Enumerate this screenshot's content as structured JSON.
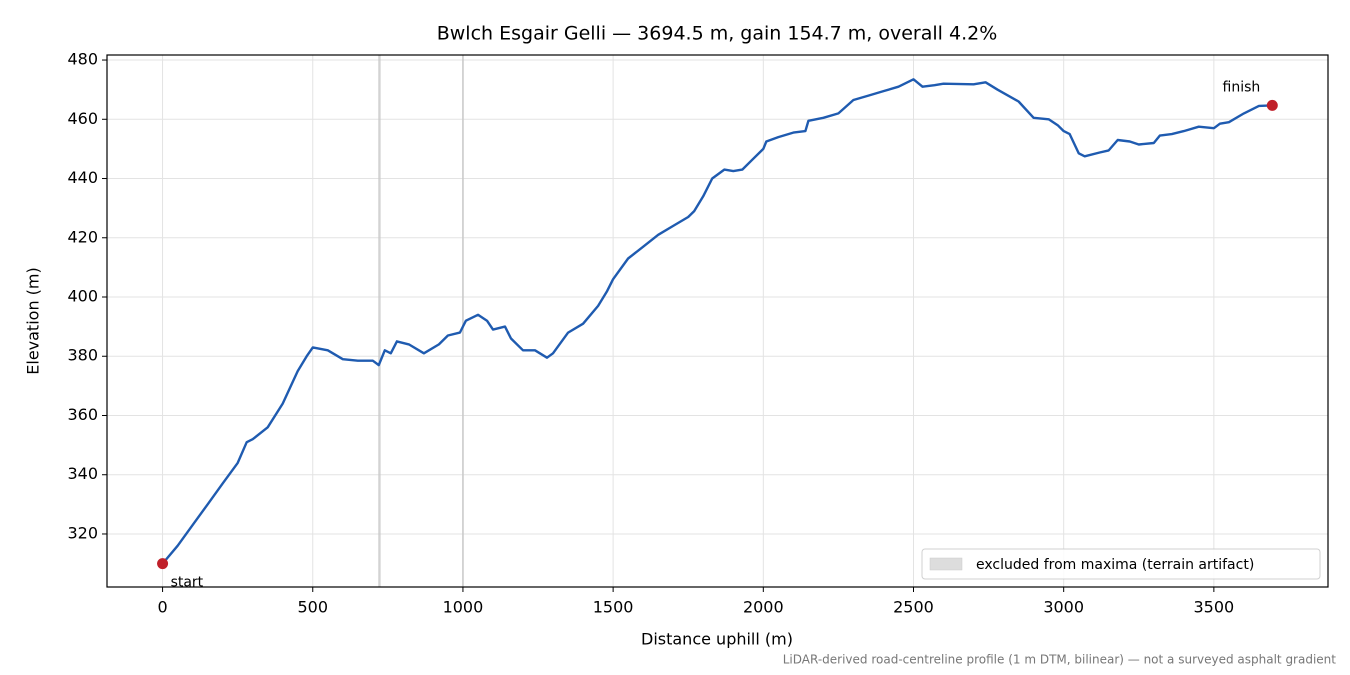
{
  "chart_data": {
    "type": "line",
    "title": "Bwlch Esgair Gelli — 3694.5 m, gain 154.7 m, overall 4.2%",
    "x_label": "Distance uphill (m)",
    "y_label": "Elevation (m)",
    "footnote": "LiDAR-derived road-centreline profile (1 m DTM, bilinear) — not a surveyed asphalt gradient",
    "color": "#1f5bb0",
    "x": [
      0,
      50,
      100,
      150,
      200,
      250,
      280,
      300,
      350,
      400,
      450,
      480,
      500,
      550,
      600,
      650,
      700,
      720,
      740,
      760,
      780,
      820,
      870,
      920,
      950,
      990,
      1000,
      1010,
      1050,
      1080,
      1100,
      1140,
      1160,
      1200,
      1240,
      1280,
      1300,
      1350,
      1400,
      1450,
      1480,
      1500,
      1550,
      1600,
      1650,
      1700,
      1750,
      1770,
      1800,
      1830,
      1870,
      1900,
      1930,
      1960,
      2000,
      2010,
      2050,
      2100,
      2140,
      2150,
      2200,
      2250,
      2300,
      2350,
      2400,
      2450,
      2500,
      2530,
      2570,
      2600,
      2700,
      2740,
      2780,
      2850,
      2900,
      2950,
      2980,
      3000,
      3020,
      3050,
      3070,
      3120,
      3150,
      3180,
      3220,
      3250,
      3300,
      3320,
      3360,
      3400,
      3450,
      3500,
      3520,
      3550,
      3600,
      3650,
      3694.5
    ],
    "values": [
      310,
      316,
      323,
      330,
      337,
      344,
      351,
      352,
      356,
      364,
      375,
      380,
      383,
      382,
      379,
      378.5,
      378.5,
      377,
      382,
      381,
      385,
      384,
      381,
      384,
      387,
      388,
      390,
      392,
      394,
      392,
      389,
      390,
      386,
      382,
      382,
      379.5,
      381,
      388,
      391,
      397,
      402,
      406,
      413,
      417,
      421,
      424,
      427,
      429,
      434,
      440,
      443,
      442.5,
      443,
      446,
      450,
      452.5,
      454,
      455.5,
      456,
      459.5,
      460.5,
      462,
      466.5,
      468,
      469.5,
      471,
      473.5,
      471,
      471.5,
      472,
      471.8,
      472.5,
      470,
      466,
      460.5,
      460,
      458,
      456,
      455,
      448.5,
      447.5,
      448.8,
      449.5,
      453,
      452.5,
      451.5,
      452,
      454.5,
      455,
      456,
      457.5,
      457,
      458.5,
      459,
      462,
      464.5,
      464.7
    ],
    "endpoints": {
      "x": [
        0,
        3694.5
      ],
      "values": [
        310,
        464.7
      ],
      "labels": [
        "start",
        "finish"
      ],
      "color": "#c0202a"
    },
    "excluded": {
      "name": "excluded from maxima (terrain artifact)",
      "color": "#c8c8c8",
      "spans": [
        [
          718,
          726
        ],
        [
          997,
          1003
        ]
      ]
    },
    "xlim": [
      -185,
      3880
    ],
    "ylim": [
      302.1,
      481.7
    ],
    "xticks": [
      0,
      500,
      1000,
      1500,
      2000,
      2500,
      3000,
      3500
    ],
    "yticks": [
      320,
      340,
      360,
      380,
      400,
      420,
      440,
      460,
      480
    ],
    "grid": true,
    "legend": "lower right"
  }
}
